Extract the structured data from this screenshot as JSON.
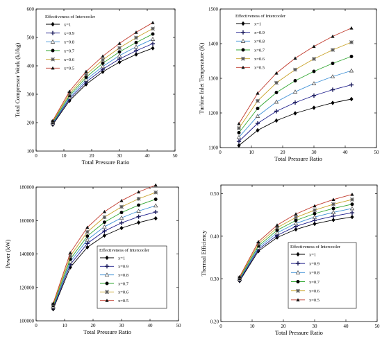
{
  "chart_data": [
    {
      "type": "line",
      "title": "",
      "xlabel": "Total Pressure Ratio",
      "ylabel": "Total Compressor Work (kJ/kg)",
      "xlim": [
        0,
        50
      ],
      "ylim": [
        100,
        600
      ],
      "xticks": [
        0,
        10,
        20,
        30,
        40,
        50
      ],
      "yticks": [
        100,
        200,
        300,
        400,
        500,
        600
      ],
      "legend_title": "Effectiveness of Intercooler",
      "legend_position": "top-left",
      "x": [
        6,
        12,
        18,
        24,
        30,
        36,
        42
      ],
      "series": [
        {
          "name": "x=1",
          "values": [
            193,
            277,
            335,
            379,
            413,
            440,
            462
          ],
          "color": "#000000",
          "marker": "diamond"
        },
        {
          "name": "x=0.9",
          "values": [
            196,
            283,
            343,
            388,
            424,
            453,
            478
          ],
          "color": "#1a1a8a",
          "marker": "plus"
        },
        {
          "name": "x=0.8",
          "values": [
            198,
            289,
            351,
            398,
            436,
            467,
            494
          ],
          "color": "#3b8fd6",
          "marker": "triangle-open"
        },
        {
          "name": "x=0.7",
          "values": [
            201,
            295,
            360,
            409,
            449,
            482,
            512
          ],
          "color": "#2fa62f",
          "marker": "circle"
        },
        {
          "name": "x=0.6",
          "values": [
            204,
            302,
            369,
            421,
            463,
            499,
            531
          ],
          "color": "#c9a227",
          "marker": "star"
        },
        {
          "name": "x=0.5",
          "values": [
            207,
            310,
            380,
            434,
            479,
            518,
            552
          ],
          "color": "#c0392b",
          "marker": "triangle"
        }
      ]
    },
    {
      "type": "line",
      "title": "",
      "xlabel": "Total Pressure Ratio",
      "ylabel": "Turbine Inlet Temperature (K)",
      "xlim": [
        0,
        50
      ],
      "ylim": [
        1100,
        1500
      ],
      "xticks": [
        0,
        10,
        20,
        30,
        40,
        50
      ],
      "yticks": [
        1100,
        1200,
        1300,
        1400,
        1500
      ],
      "legend_title": "Effectiveness of Intercooler",
      "legend_position": "top-left",
      "x": [
        6,
        12,
        18,
        24,
        30,
        36,
        42
      ],
      "series": [
        {
          "name": "x=1",
          "values": [
            1106,
            1150,
            1178,
            1199,
            1215,
            1229,
            1240
          ],
          "color": "#000000",
          "marker": "diamond"
        },
        {
          "name": "x=0.9",
          "values": [
            1118,
            1170,
            1205,
            1230,
            1250,
            1267,
            1281
          ],
          "color": "#1a1a8a",
          "marker": "plus"
        },
        {
          "name": "x=0.8",
          "values": [
            1130,
            1191,
            1232,
            1261,
            1285,
            1305,
            1322
          ],
          "color": "#3b8fd6",
          "marker": "triangle-open"
        },
        {
          "name": "x=0.7",
          "values": [
            1143,
            1213,
            1259,
            1293,
            1320,
            1343,
            1363
          ],
          "color": "#2fa62f",
          "marker": "circle"
        },
        {
          "name": "x=0.6",
          "values": [
            1156,
            1235,
            1287,
            1325,
            1356,
            1382,
            1404
          ],
          "color": "#c9a227",
          "marker": "star"
        },
        {
          "name": "x=0.5",
          "values": [
            1169,
            1257,
            1315,
            1358,
            1392,
            1421,
            1445
          ],
          "color": "#c0392b",
          "marker": "triangle"
        }
      ]
    },
    {
      "type": "line",
      "title": "",
      "xlabel": "Total Pressure Ratio",
      "ylabel": "Power (kW)",
      "xlim": [
        0,
        50
      ],
      "ylim": [
        100000,
        180000
      ],
      "xticks": [
        0,
        10,
        20,
        30,
        40,
        50
      ],
      "yticks": [
        100000,
        120000,
        140000,
        160000,
        180000
      ],
      "legend_title": "Effectiveness of Intercooler",
      "legend_position": "bottom-right",
      "x": [
        6,
        12,
        18,
        24,
        30,
        36,
        42
      ],
      "series": [
        {
          "name": "x=1",
          "values": [
            107000,
            132000,
            144000,
            151000,
            155500,
            158800,
            161300
          ],
          "color": "#000000",
          "marker": "diamond"
        },
        {
          "name": "x=0.9",
          "values": [
            107700,
            133700,
            146300,
            153700,
            158600,
            162300,
            165100
          ],
          "color": "#1a1a8a",
          "marker": "plus"
        },
        {
          "name": "x=0.8",
          "values": [
            108400,
            135300,
            148500,
            156300,
            161600,
            165700,
            168900
          ],
          "color": "#3b8fd6",
          "marker": "triangle-open"
        },
        {
          "name": "x=0.7",
          "values": [
            109100,
            136900,
            150700,
            159000,
            164800,
            169200,
            172700
          ],
          "color": "#2fa62f",
          "marker": "circle"
        },
        {
          "name": "x=0.6",
          "values": [
            109800,
            138700,
            153200,
            162000,
            168200,
            173000,
            176800
          ],
          "color": "#c9a227",
          "marker": "star"
        },
        {
          "name": "x=0.5",
          "values": [
            110500,
            140700,
            155900,
            165300,
            171900,
            177100,
            181200
          ],
          "color": "#c0392b",
          "marker": "triangle"
        }
      ]
    },
    {
      "type": "line",
      "title": "",
      "xlabel": "Total Pressure Ratio",
      "ylabel": "Thermal Efficiency",
      "xlim": [
        0,
        50
      ],
      "ylim": [
        0.2,
        0.52
      ],
      "xticks": [
        0,
        10,
        20,
        30,
        40,
        50
      ],
      "yticks": [
        0.2,
        0.3,
        0.4,
        0.5
      ],
      "ytick_labels": [
        "0.20",
        "0.30",
        "0.40",
        "0.50"
      ],
      "legend_title": "Effectiveness of Intercooler",
      "legend_position": "right",
      "x": [
        6,
        12,
        18,
        24,
        30,
        36,
        42
      ],
      "series": [
        {
          "name": "x=1",
          "values": [
            0.295,
            0.365,
            0.397,
            0.416,
            0.429,
            0.438,
            0.445
          ],
          "color": "#000000",
          "marker": "diamond"
        },
        {
          "name": "x=0.9",
          "values": [
            0.297,
            0.369,
            0.402,
            0.423,
            0.437,
            0.447,
            0.455
          ],
          "color": "#1a1a8a",
          "marker": "plus"
        },
        {
          "name": "x=0.8",
          "values": [
            0.299,
            0.373,
            0.408,
            0.43,
            0.445,
            0.456,
            0.465
          ],
          "color": "#3b8fd6",
          "marker": "triangle-open"
        },
        {
          "name": "x=0.7",
          "values": [
            0.301,
            0.377,
            0.414,
            0.437,
            0.453,
            0.465,
            0.475
          ],
          "color": "#2fa62f",
          "marker": "circle"
        },
        {
          "name": "x=0.6",
          "values": [
            0.303,
            0.382,
            0.42,
            0.444,
            0.461,
            0.475,
            0.486
          ],
          "color": "#c9a227",
          "marker": "star"
        },
        {
          "name": "x=0.5",
          "values": [
            0.305,
            0.387,
            0.426,
            0.452,
            0.471,
            0.486,
            0.498
          ],
          "color": "#c0392b",
          "marker": "triangle"
        }
      ]
    }
  ]
}
